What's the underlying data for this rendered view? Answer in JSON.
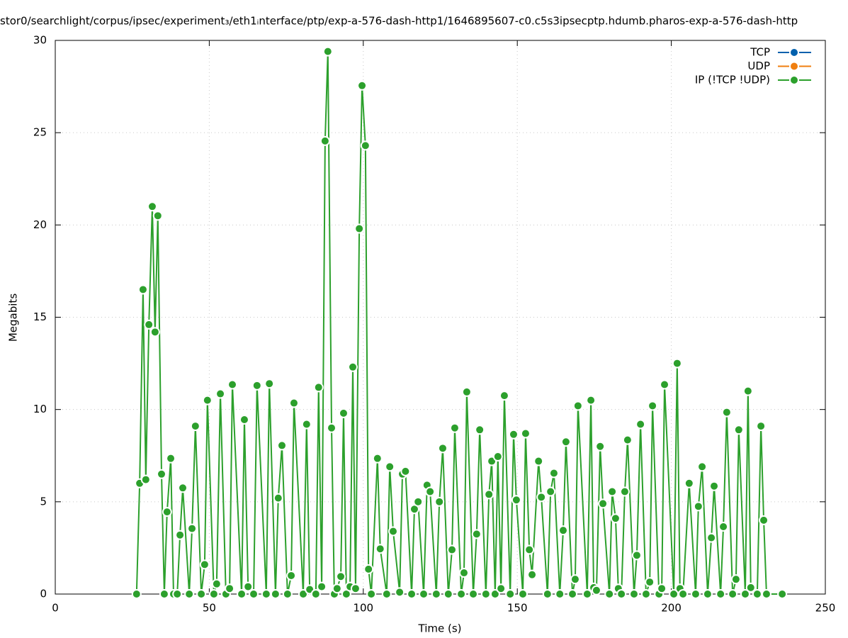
{
  "chart_data": {
    "type": "line",
    "title": "stor0/searchlight/corpus/ipsec/experiment₃/eth1ᵢnterface/ptp/exp-a-576-dash-http1/1646895607-c0.c5s3ipsecptp.hdumb.pharos-exp-a-576-dash-http",
    "x_label": "Time (s)",
    "y_label": "Megabits",
    "xlim": [
      0,
      250
    ],
    "xticks": [
      0,
      50,
      100,
      150,
      200,
      250
    ],
    "ylim": [
      0,
      30
    ],
    "yticks": [
      0,
      5,
      10,
      15,
      20,
      25,
      30
    ],
    "grid": true,
    "legend": "top-right",
    "series": [
      {
        "name": "TCP",
        "color": "#0060ad",
        "x": [],
        "values": []
      },
      {
        "name": "UDP",
        "color": "#f07f10",
        "x": [],
        "values": []
      },
      {
        "name": "IP (!TCP  !UDP)",
        "color": "#2ca02c",
        "x": [
          26.4,
          27.4,
          28.5,
          29.4,
          30.4,
          31.5,
          32.4,
          33.3,
          34.5,
          35.4,
          36.3,
          37.5,
          38.4,
          39.6,
          40.5,
          41.4,
          43.5,
          44.4,
          45.5,
          47.4,
          48.5,
          49.4,
          51.5,
          52.4,
          53.6,
          55.4,
          56.6,
          57.5,
          60.5,
          61.4,
          62.6,
          64.4,
          65.5,
          68.5,
          69.5,
          71.5,
          72.4,
          73.6,
          75.4,
          76.6,
          77.5,
          80.5,
          81.6,
          82.6,
          84.6,
          85.5,
          86.5,
          87.6,
          88.5,
          89.7,
          90.6,
          91.5,
          92.7,
          93.6,
          94.5,
          95.7,
          96.6,
          97.5,
          98.7,
          99.6,
          100.7,
          101.7,
          102.6,
          104.6,
          105.5,
          107.6,
          108.6,
          109.7,
          111.8,
          112.7,
          113.7,
          115.7,
          116.6,
          117.8,
          119.6,
          120.7,
          121.7,
          123.7,
          124.7,
          125.8,
          127.6,
          128.8,
          129.7,
          131.8,
          132.7,
          133.6,
          135.7,
          136.8,
          137.8,
          139.8,
          140.8,
          141.7,
          142.8,
          143.7,
          144.7,
          145.8,
          147.7,
          148.8,
          149.7,
          151.8,
          152.7,
          153.9,
          154.8,
          156.9,
          157.8,
          159.8,
          160.8,
          161.9,
          163.8,
          164.9,
          165.8,
          167.9,
          168.8,
          169.7,
          172.7,
          173.9,
          174.8,
          175.7,
          176.9,
          177.8,
          179.9,
          180.8,
          181.9,
          182.8,
          183.8,
          184.9,
          185.8,
          187.9,
          188.8,
          190.0,
          191.8,
          193.0,
          193.9,
          196.0,
          196.9,
          197.8,
          200.8,
          201.9,
          202.8,
          203.8,
          205.8,
          207.9,
          208.8,
          210.0,
          211.8,
          213.0,
          213.9,
          216.0,
          216.9,
          218.0,
          219.9,
          221.0,
          221.9,
          224.0,
          224.9,
          225.8,
          227.9,
          229.1,
          230.0,
          230.9,
          236.0
        ],
        "values": [
          0,
          6.0,
          16.5,
          6.2,
          14.6,
          21.0,
          14.2,
          20.5,
          6.5,
          0,
          4.45,
          7.35,
          0,
          0,
          3.2,
          5.75,
          0,
          3.55,
          9.1,
          0,
          1.6,
          10.5,
          0,
          0.55,
          10.85,
          0,
          0.3,
          11.35,
          0,
          9.45,
          0.4,
          0,
          11.3,
          0,
          11.4,
          0,
          5.2,
          8.05,
          0,
          1.0,
          10.35,
          0,
          9.2,
          0.25,
          0,
          11.2,
          0.4,
          24.55,
          29.4,
          9.0,
          0,
          0.3,
          0.95,
          9.8,
          0,
          0.4,
          12.3,
          0.3,
          19.8,
          27.55,
          24.3,
          1.35,
          0,
          7.35,
          2.45,
          0,
          6.9,
          3.4,
          0.1,
          6.5,
          6.65,
          0,
          4.6,
          5.0,
          0,
          5.9,
          5.55,
          0,
          5.0,
          7.9,
          0,
          2.4,
          9.0,
          0,
          1.15,
          10.95,
          0,
          3.25,
          8.9,
          0,
          5.4,
          7.2,
          0,
          7.45,
          0.3,
          10.75,
          0,
          8.65,
          5.1,
          0,
          8.7,
          2.4,
          1.05,
          7.2,
          5.25,
          0,
          5.55,
          6.55,
          0,
          3.45,
          8.25,
          0,
          0.8,
          10.2,
          0,
          10.5,
          0.35,
          0.2,
          8.0,
          4.9,
          0,
          5.55,
          4.1,
          0.3,
          0,
          5.55,
          8.35,
          0,
          2.1,
          9.2,
          0,
          0.65,
          10.2,
          0,
          0.3,
          11.35,
          0,
          12.5,
          0.3,
          0,
          6.0,
          0,
          4.75,
          6.9,
          0,
          3.05,
          5.85,
          0,
          3.65,
          9.85,
          0,
          0.8,
          8.9,
          0,
          11.0,
          0.35,
          0,
          9.1,
          4.0,
          0,
          0
        ]
      }
    ]
  }
}
